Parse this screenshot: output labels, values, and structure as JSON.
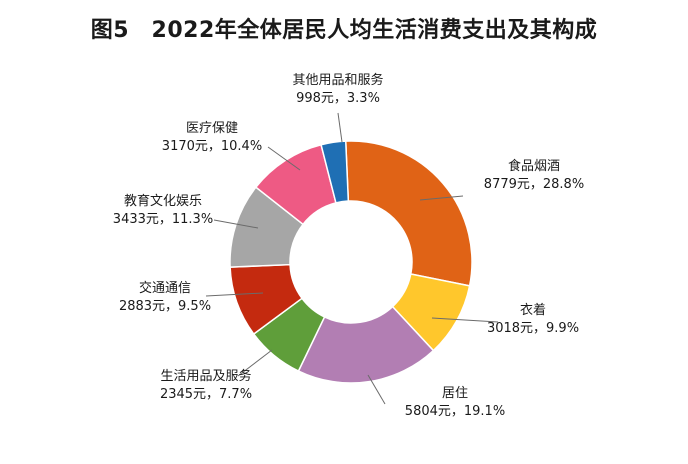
{
  "chart_data": {
    "type": "pie",
    "title": "图5　2022年全体居民人均生活消费支出及其构成",
    "slices": [
      {
        "name": "食品烟酒",
        "value": 8779,
        "value_label": "8779元，28.8%",
        "percent": 28.8,
        "color": "#E06316"
      },
      {
        "name": "衣着",
        "value": 3018,
        "value_label": "3018元，9.9%",
        "percent": 9.9,
        "color": "#FFC72C"
      },
      {
        "name": "居住",
        "value": 5804,
        "value_label": "5804元，19.1%",
        "percent": 19.1,
        "color": "#B27EB3"
      },
      {
        "name": "生活用品及服务",
        "value": 2345,
        "value_label": "2345元，7.7%",
        "percent": 7.7,
        "color": "#5F9E3A"
      },
      {
        "name": "交通通信",
        "value": 2883,
        "value_label": "2883元，9.5%",
        "percent": 9.5,
        "color": "#C42A0F"
      },
      {
        "name": "教育文化娱乐",
        "value": 3433,
        "value_label": "3433元，11.3%",
        "percent": 11.3,
        "color": "#A6A6A6"
      },
      {
        "name": "医疗保健",
        "value": 3170,
        "value_label": "3170元，10.4%",
        "percent": 10.4,
        "color": "#EE5A84"
      },
      {
        "name": "其他用品和服务",
        "value": 998,
        "value_label": "998元，3.3%",
        "percent": 3.3,
        "color": "#1F6FB4"
      }
    ],
    "legend": "none",
    "grid": false
  }
}
